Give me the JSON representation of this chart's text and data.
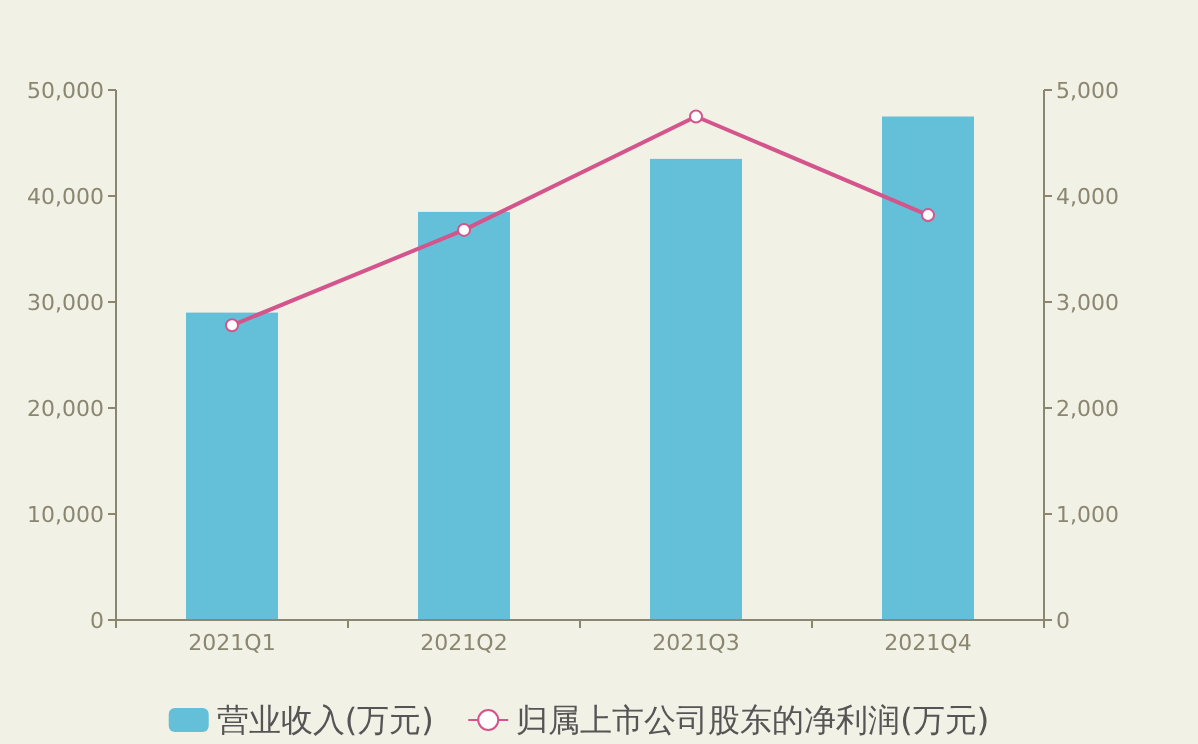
{
  "chart_data": {
    "type": "bar",
    "categories": [
      "2021Q1",
      "2021Q2",
      "2021Q3",
      "2021Q4"
    ],
    "series": [
      {
        "name": "营业收入(万元)",
        "color": "#64c0d8",
        "values": [
          29000,
          38500,
          43500,
          47500
        ]
      },
      {
        "name": "归属上市公司股东的净利润(万元)",
        "type": "line",
        "axis": "y2",
        "color": "#d4558c",
        "values": [
          2780,
          3680,
          4750,
          3820
        ]
      }
    ],
    "ylim": [
      0,
      50000
    ],
    "yticks": [
      {
        "value": 0,
        "label": "0"
      },
      {
        "value": 10000,
        "label": "10,000"
      },
      {
        "value": 20000,
        "label": "20,000"
      },
      {
        "value": 30000,
        "label": "30,000"
      },
      {
        "value": 40000,
        "label": "40,000"
      },
      {
        "value": 50000,
        "label": "50,000"
      }
    ],
    "y2lim": [
      0,
      5000
    ],
    "y2ticks": [
      {
        "value": 0,
        "label": "0"
      },
      {
        "value": 1000,
        "label": "1,000"
      },
      {
        "value": 2000,
        "label": "2,000"
      },
      {
        "value": 3000,
        "label": "3,000"
      },
      {
        "value": 4000,
        "label": "4,000"
      },
      {
        "value": 5000,
        "label": "5,000"
      }
    ],
    "legend": "bottom",
    "marker": "circle",
    "grid": false
  }
}
